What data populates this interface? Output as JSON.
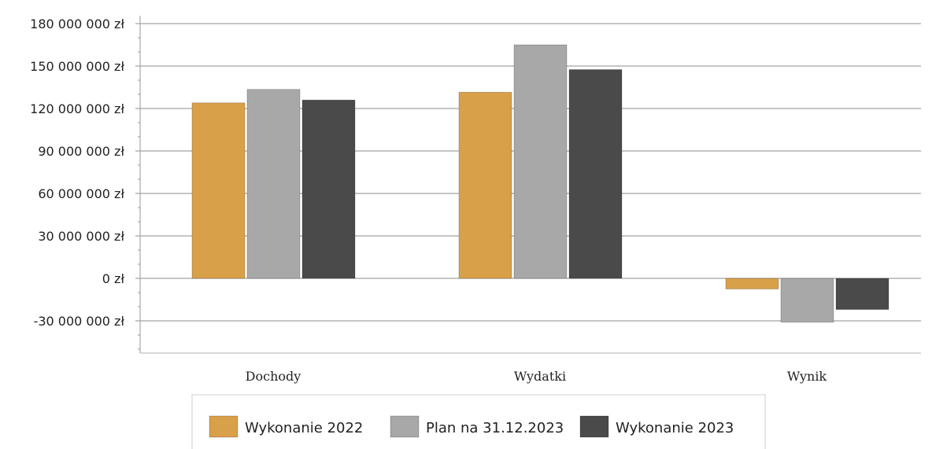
{
  "chart_data": {
    "type": "bar",
    "categories": [
      "Dochody",
      "Wydatki",
      "Wynik"
    ],
    "series": [
      {
        "name": "Wykonanie 2022",
        "color": "#D9A04A",
        "values": [
          124000000,
          131500000,
          -7500000
        ]
      },
      {
        "name": "Plan na 31.12.2023",
        "color": "#A8A8A8",
        "values": [
          133500000,
          165000000,
          -31000000
        ]
      },
      {
        "name": "Wykonanie 2023",
        "color": "#4A4A4A",
        "values": [
          126000000,
          147500000,
          -22000000
        ]
      }
    ],
    "ylim": [
      -50000000,
      180000000
    ],
    "yticks": [
      180000000,
      150000000,
      120000000,
      90000000,
      60000000,
      30000000,
      0,
      -30000000
    ],
    "ytick_labels": [
      "180 000 000 zł",
      "150 000 000 zł",
      "120 000 000 zł",
      "90 000 000 zł",
      "60 000 000 zł",
      "30 000 000 zł",
      "0 zł",
      "-30 000 000 zł"
    ],
    "grid": true,
    "legend_position": "bottom"
  }
}
